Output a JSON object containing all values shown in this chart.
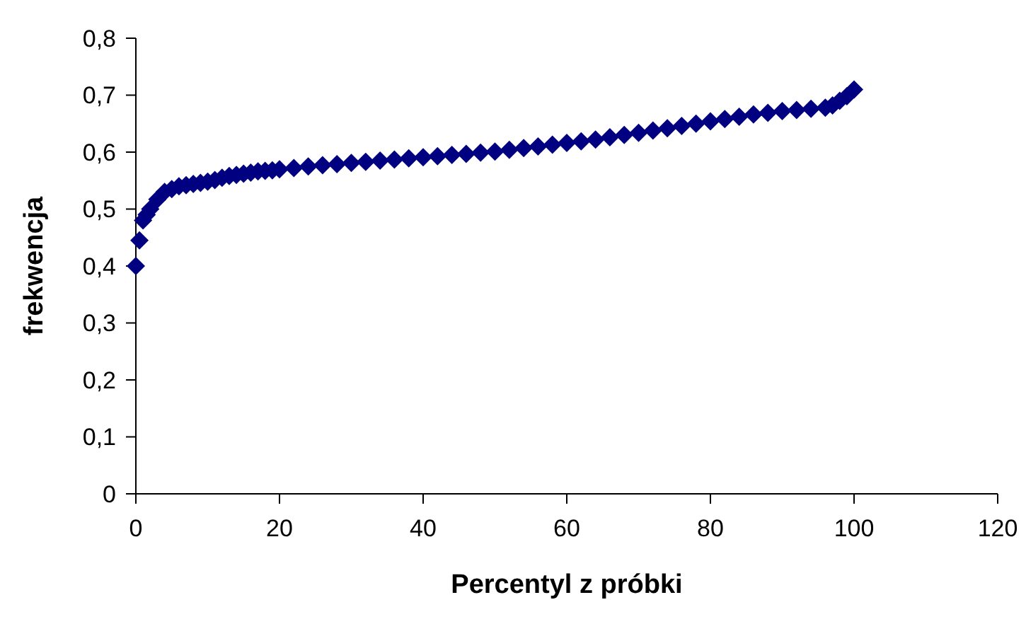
{
  "chart_data": {
    "type": "scatter",
    "xlabel": "Percentyl z próbki",
    "ylabel": "frekwencja",
    "marker": "diamond",
    "grid": false,
    "xlim": [
      0,
      120
    ],
    "xticks": [
      0,
      20,
      40,
      60,
      80,
      100,
      120
    ],
    "ylim": [
      0,
      0.8
    ],
    "yticks": [
      0,
      {
        "value": 0.1,
        "label": "0,1"
      },
      {
        "value": 0.2,
        "label": "0,2"
      },
      {
        "value": 0.3,
        "label": "0,3"
      },
      {
        "value": 0.4,
        "label": "0,4"
      },
      {
        "value": 0.5,
        "label": "0,5"
      },
      {
        "value": 0.6,
        "label": "0,6"
      },
      {
        "value": 0.7,
        "label": "0,7"
      },
      {
        "value": 0.8,
        "label": "0,8"
      }
    ],
    "series": [
      {
        "color": "#000080",
        "x": [
          0,
          0.5,
          1,
          1.5,
          2,
          3,
          4,
          5,
          6,
          7,
          8,
          9,
          10,
          11,
          12,
          13,
          14,
          15,
          16,
          17,
          18,
          19,
          20,
          22,
          24,
          26,
          28,
          30,
          32,
          34,
          36,
          38,
          40,
          42,
          44,
          46,
          48,
          50,
          52,
          54,
          56,
          58,
          60,
          62,
          64,
          66,
          68,
          70,
          72,
          74,
          76,
          78,
          80,
          82,
          84,
          86,
          88,
          90,
          92,
          94,
          96,
          97,
          98,
          99,
          100
        ],
        "values": [
          0.4,
          0.445,
          0.48,
          0.49,
          0.5,
          0.517,
          0.53,
          0.535,
          0.54,
          0.542,
          0.544,
          0.546,
          0.548,
          0.551,
          0.555,
          0.558,
          0.56,
          0.562,
          0.564,
          0.566,
          0.567,
          0.568,
          0.57,
          0.572,
          0.575,
          0.577,
          0.579,
          0.581,
          0.583,
          0.585,
          0.587,
          0.589,
          0.591,
          0.593,
          0.595,
          0.597,
          0.599,
          0.601,
          0.604,
          0.607,
          0.61,
          0.613,
          0.616,
          0.619,
          0.622,
          0.626,
          0.63,
          0.634,
          0.638,
          0.642,
          0.646,
          0.65,
          0.654,
          0.658,
          0.662,
          0.666,
          0.669,
          0.672,
          0.674,
          0.676,
          0.678,
          0.682,
          0.69,
          0.698,
          0.71
        ]
      }
    ]
  }
}
